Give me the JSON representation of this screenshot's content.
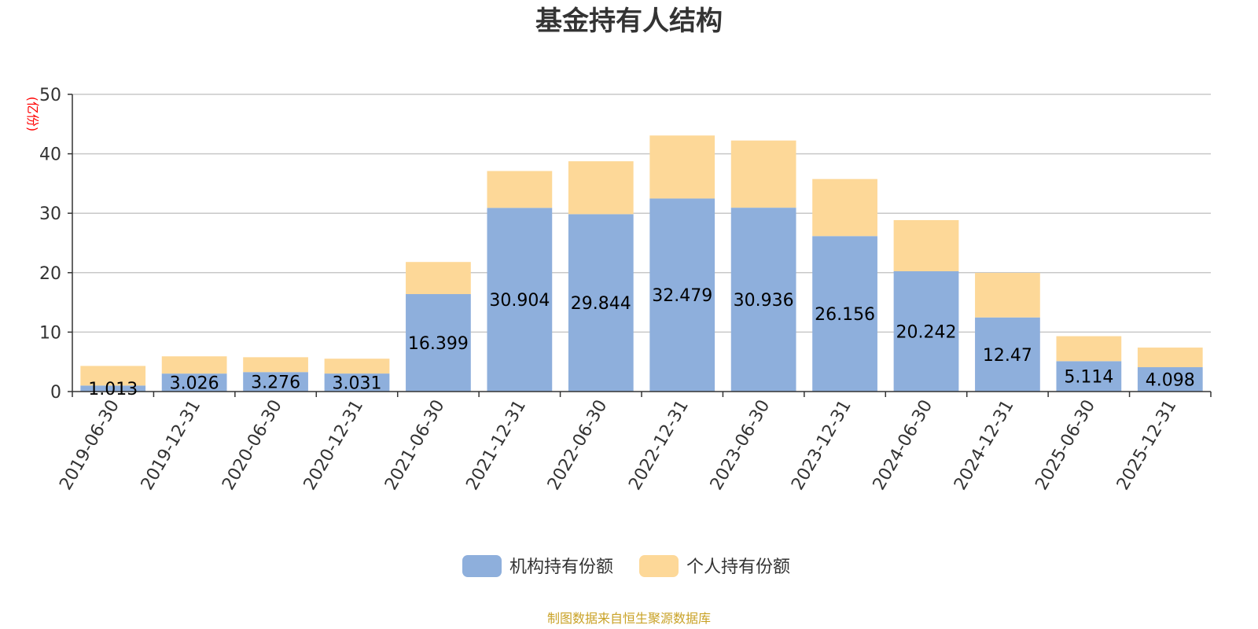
{
  "chart_data": {
    "type": "bar",
    "stacked": true,
    "title": "基金持有人结构",
    "ylabel": "(亿份)",
    "ylim": [
      0,
      50
    ],
    "yticks": [
      0,
      10,
      20,
      30,
      40,
      50
    ],
    "grid": true,
    "legend_position": "bottom",
    "categories": [
      "2019-06-30",
      "2019-12-31",
      "2020-06-30",
      "2020-12-31",
      "2021-06-30",
      "2021-12-31",
      "2022-06-30",
      "2022-12-31",
      "2023-06-30",
      "2023-12-31",
      "2024-06-30",
      "2024-12-31",
      "2025-06-30",
      "2025-12-31"
    ],
    "series": [
      {
        "name": "机构持有份额",
        "color": "#8eafdc",
        "values": [
          1.013,
          3.026,
          3.276,
          3.031,
          16.399,
          30.904,
          29.844,
          32.479,
          30.936,
          26.156,
          20.242,
          12.47,
          5.114,
          4.098
        ],
        "labels": [
          "1.013",
          "3.026",
          "3.276",
          "3.031",
          "16.399",
          "30.904",
          "29.844",
          "32.479",
          "30.936",
          "26.156",
          "20.242",
          "12.47",
          "5.114",
          "4.098"
        ]
      },
      {
        "name": "个人持有份额",
        "color": "#fdd898",
        "values": [
          3.3,
          2.9,
          2.5,
          2.5,
          5.4,
          6.2,
          8.9,
          10.6,
          11.3,
          9.6,
          8.6,
          7.5,
          4.2,
          3.3
        ]
      }
    ],
    "source": "制图数据来自恒生聚源数据库"
  }
}
